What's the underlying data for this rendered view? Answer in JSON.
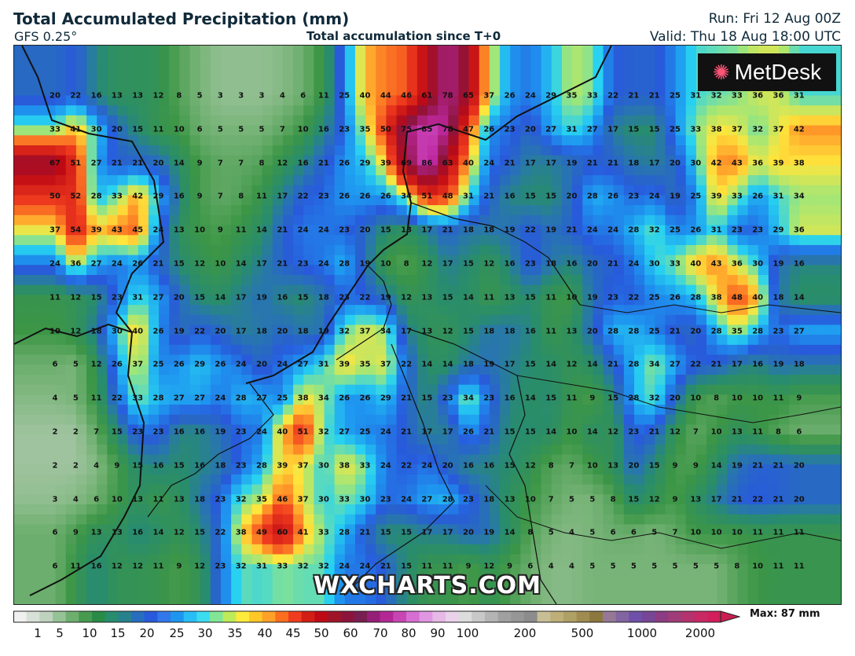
{
  "header": {
    "title": "Total Accumulated Precipitation (mm)",
    "model": "GFS 0.25°",
    "subtitle": "Total accumulation since T+0",
    "run": "Run: Fri 12 Aug 00Z",
    "valid": "Valid: Thu 18 Aug 18:00 UTC"
  },
  "branding": {
    "logo": "MetDesk",
    "logo_icon": "metdesk-star-icon",
    "watermark": "WXCHARTS.COM"
  },
  "legend": {
    "ticks": [
      "1",
      "5",
      "10",
      "15",
      "20",
      "25",
      "30",
      "35",
      "40",
      "45",
      "50",
      "60",
      "70",
      "80",
      "90",
      "100",
      "200",
      "500",
      "1000",
      "2000"
    ],
    "max_label": "Max: 87 mm"
  },
  "grid": [
    [
      20,
      22,
      16,
      13,
      13,
      12,
      8,
      5,
      3,
      3,
      3,
      4,
      6,
      11,
      25,
      40,
      44,
      46,
      61,
      78,
      65,
      37,
      26,
      24,
      29,
      35,
      33,
      22,
      21,
      21,
      25,
      31,
      32,
      33,
      36,
      36,
      31
    ],
    [
      33,
      41,
      30,
      20,
      15,
      11,
      10,
      6,
      5,
      5,
      5,
      7,
      10,
      16,
      23,
      35,
      50,
      75,
      85,
      78,
      47,
      26,
      23,
      20,
      27,
      31,
      27,
      17,
      15,
      15,
      25,
      33,
      38,
      37,
      32,
      37,
      42
    ],
    [
      67,
      51,
      27,
      21,
      21,
      20,
      14,
      9,
      7,
      7,
      8,
      12,
      16,
      21,
      26,
      29,
      39,
      69,
      86,
      63,
      40,
      24,
      21,
      17,
      17,
      19,
      21,
      21,
      18,
      17,
      20,
      30,
      42,
      43,
      36,
      39,
      38
    ],
    [
      50,
      52,
      28,
      33,
      42,
      29,
      16,
      9,
      7,
      8,
      11,
      17,
      22,
      23,
      26,
      26,
      26,
      34,
      51,
      48,
      31,
      21,
      16,
      15,
      15,
      20,
      28,
      26,
      23,
      24,
      19,
      25,
      39,
      33,
      26,
      31,
      34
    ],
    [
      37,
      54,
      39,
      43,
      45,
      24,
      13,
      10,
      9,
      11,
      14,
      21,
      24,
      24,
      23,
      20,
      15,
      13,
      17,
      21,
      18,
      18,
      19,
      22,
      19,
      21,
      24,
      24,
      28,
      32,
      25,
      26,
      31,
      23,
      23,
      29,
      36
    ],
    [
      24,
      36,
      27,
      24,
      26,
      21,
      15,
      12,
      10,
      14,
      17,
      21,
      23,
      24,
      28,
      19,
      10,
      8,
      12,
      17,
      15,
      12,
      16,
      23,
      18,
      16,
      20,
      21,
      24,
      30,
      33,
      40,
      43,
      36,
      30,
      19,
      16
    ],
    [
      11,
      12,
      15,
      23,
      31,
      27,
      20,
      15,
      14,
      17,
      19,
      16,
      15,
      18,
      23,
      22,
      19,
      12,
      13,
      15,
      14,
      11,
      13,
      15,
      11,
      10,
      19,
      23,
      22,
      25,
      26,
      28,
      38,
      48,
      40,
      18,
      14
    ],
    [
      10,
      12,
      18,
      30,
      40,
      26,
      19,
      22,
      20,
      17,
      18,
      20,
      18,
      19,
      32,
      37,
      34,
      17,
      13,
      12,
      15,
      18,
      18,
      16,
      11,
      13,
      20,
      28,
      28,
      25,
      21,
      20,
      28,
      35,
      28,
      23,
      27
    ],
    [
      6,
      5,
      12,
      26,
      37,
      25,
      26,
      29,
      26,
      24,
      20,
      24,
      27,
      31,
      39,
      35,
      37,
      22,
      14,
      14,
      18,
      19,
      17,
      15,
      14,
      12,
      14,
      21,
      28,
      34,
      27,
      22,
      21,
      17,
      16,
      19,
      18
    ],
    [
      4,
      5,
      11,
      22,
      33,
      28,
      27,
      27,
      24,
      28,
      27,
      25,
      38,
      34,
      26,
      26,
      29,
      21,
      15,
      23,
      34,
      23,
      16,
      14,
      15,
      11,
      9,
      15,
      28,
      32,
      20,
      10,
      8,
      10,
      10,
      11,
      9
    ],
    [
      2,
      2,
      7,
      15,
      23,
      23,
      16,
      16,
      19,
      23,
      24,
      40,
      51,
      32,
      27,
      25,
      24,
      21,
      17,
      17,
      26,
      21,
      15,
      15,
      14,
      10,
      14,
      12,
      23,
      21,
      12,
      7,
      10,
      13,
      11,
      8,
      6
    ],
    [
      2,
      2,
      4,
      9,
      15,
      16,
      15,
      16,
      18,
      23,
      28,
      39,
      37,
      30,
      38,
      33,
      24,
      22,
      24,
      20,
      16,
      16,
      15,
      12,
      8,
      7,
      10,
      13,
      20,
      15,
      9,
      9,
      14,
      19,
      21,
      21,
      20
    ],
    [
      3,
      4,
      6,
      10,
      13,
      11,
      13,
      18,
      23,
      32,
      35,
      46,
      37,
      30,
      33,
      30,
      23,
      24,
      27,
      28,
      23,
      18,
      13,
      10,
      7,
      5,
      5,
      8,
      15,
      12,
      9,
      13,
      17,
      21,
      22,
      21,
      20
    ],
    [
      6,
      9,
      13,
      13,
      16,
      14,
      12,
      15,
      22,
      38,
      49,
      60,
      41,
      33,
      28,
      21,
      15,
      15,
      17,
      17,
      20,
      19,
      14,
      8,
      5,
      4,
      5,
      6,
      6,
      5,
      7,
      10,
      10,
      10,
      11,
      11,
      11
    ],
    [
      6,
      11,
      16,
      12,
      12,
      11,
      9,
      12,
      23,
      32,
      31,
      33,
      32,
      32,
      24,
      24,
      21,
      15,
      11,
      11,
      9,
      12,
      9,
      6,
      4,
      4,
      5,
      5,
      5,
      5,
      5,
      5,
      5,
      8,
      10,
      11,
      11
    ]
  ]
}
